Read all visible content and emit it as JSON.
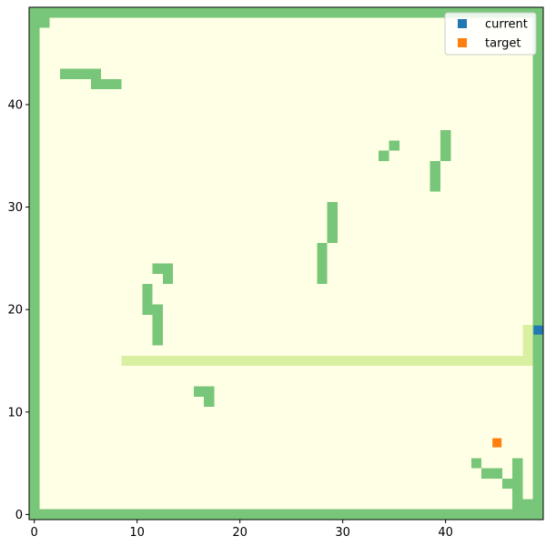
{
  "chart_data": {
    "type": "heatmap",
    "title": "",
    "xlabel": "",
    "ylabel": "",
    "grid_size": [
      50,
      50
    ],
    "xlim": [
      -0.5,
      49.5
    ],
    "ylim": [
      -0.5,
      49.5
    ],
    "x_ticks": [
      "0",
      "10",
      "20",
      "30",
      "40"
    ],
    "y_ticks": [
      "0",
      "10",
      "20",
      "30",
      "40"
    ],
    "legend_position": "top-right",
    "legend": [
      {
        "label": "current",
        "color": "#1f77b4"
      },
      {
        "label": "target",
        "color": "#ff7f0e"
      }
    ],
    "colors": {
      "background": "#ffffe5",
      "obstacle": "#78c679",
      "path": "#d9f0a3",
      "frame": "#000000"
    },
    "obstacles": [
      [
        0,
        0,
        49,
        0
      ],
      [
        0,
        49,
        49,
        49
      ],
      [
        0,
        1,
        0,
        48
      ],
      [
        49,
        1,
        49,
        48
      ],
      [
        1,
        48,
        1,
        48
      ],
      [
        3,
        43,
        6,
        43
      ],
      [
        6,
        42,
        8,
        42
      ],
      [
        34,
        35,
        34,
        35
      ],
      [
        35,
        36,
        35,
        36
      ],
      [
        40,
        35,
        40,
        37
      ],
      [
        39,
        32,
        39,
        34
      ],
      [
        29,
        27,
        29,
        30
      ],
      [
        28,
        23,
        28,
        26
      ],
      [
        12,
        24,
        13,
        24
      ],
      [
        13,
        23,
        13,
        23
      ],
      [
        11,
        20,
        11,
        22
      ],
      [
        12,
        17,
        12,
        20
      ],
      [
        16,
        12,
        17,
        12
      ],
      [
        17,
        11,
        17,
        11
      ],
      [
        43,
        5,
        43,
        5
      ],
      [
        44,
        4,
        45,
        4
      ],
      [
        46,
        3,
        46,
        3
      ],
      [
        47,
        1,
        47,
        5
      ],
      [
        48,
        1,
        48,
        1
      ]
    ],
    "path": [
      [
        9,
        15,
        48,
        15
      ],
      [
        48,
        16,
        48,
        18
      ]
    ],
    "current": {
      "x": 49,
      "y": 18
    },
    "target": {
      "x": 45,
      "y": 7
    }
  }
}
